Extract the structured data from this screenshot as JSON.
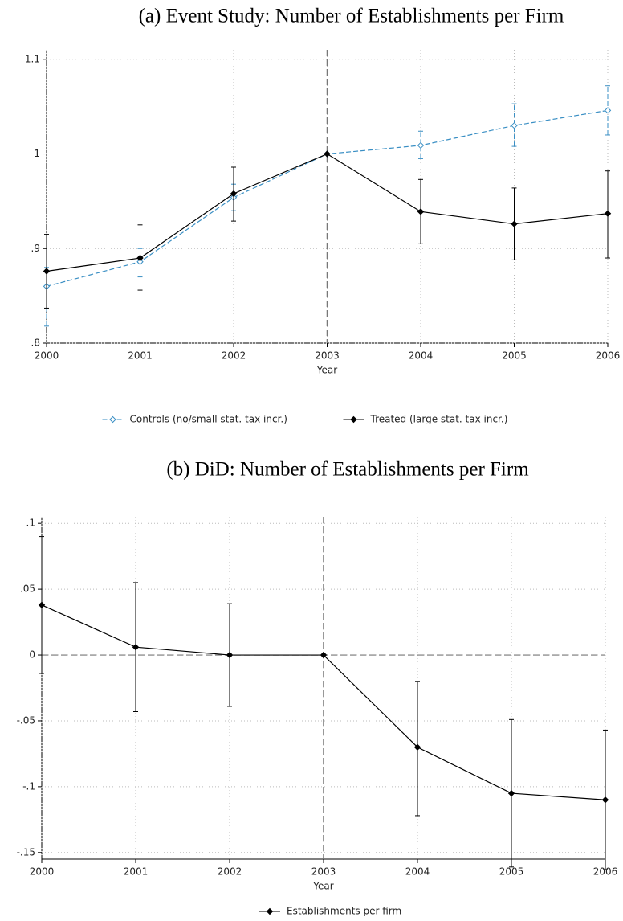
{
  "chart_data": [
    {
      "type": "line",
      "title": "(a) Event Study: Number of Establishments per Firm",
      "x_label": "Year",
      "x": [
        2000,
        2001,
        2002,
        2003,
        2004,
        2005,
        2006
      ],
      "xlim": [
        2000,
        2006
      ],
      "xticks": [
        2000,
        2001,
        2002,
        2003,
        2004,
        2005,
        2006
      ],
      "ylim": [
        0.8,
        1.11
      ],
      "yticks": [
        {
          "value": 0.8,
          "label": ".8"
        },
        {
          "value": 0.9,
          "label": ".9"
        },
        1,
        1.1
      ],
      "grid": true,
      "vline": 2003,
      "series": [
        {
          "name": "Controls (no/small stat. tax incr.)",
          "color": "#3a8fc4",
          "marker": "hollow",
          "dashed": true,
          "values": [
            0.86,
            0.886,
            0.954,
            1,
            1.009,
            1.03,
            1.046
          ],
          "lower": [
            0.818,
            0.87,
            0.94,
            null,
            0.995,
            1.008,
            1.02
          ],
          "upper": [
            0.88,
            0.9,
            0.968,
            null,
            1.024,
            1.053,
            1.072
          ]
        },
        {
          "name": "Treated (large stat. tax incr.)",
          "color": "#000000",
          "marker": "filled",
          "dashed": false,
          "values": [
            0.876,
            0.89,
            0.958,
            1,
            0.939,
            0.926,
            0.937
          ],
          "lower": [
            0.837,
            0.856,
            0.929,
            null,
            0.905,
            0.888,
            0.89
          ],
          "upper": [
            0.915,
            0.925,
            0.986,
            null,
            0.973,
            0.964,
            0.982
          ]
        }
      ]
    },
    {
      "type": "line",
      "title": "(b) DiD: Number of Establishments per Firm",
      "x_label": "Year",
      "x": [
        2000,
        2001,
        2002,
        2003,
        2004,
        2005,
        2006
      ],
      "xlim": [
        2000,
        2006
      ],
      "xticks": [
        2000,
        2001,
        2002,
        2003,
        2004,
        2005,
        2006
      ],
      "ylim": [
        -0.155,
        0.105
      ],
      "yticks": [
        {
          "value": 0.1,
          "label": ".1"
        },
        {
          "value": 0.05,
          "label": ".05"
        },
        0,
        {
          "value": -0.05,
          "label": "-.05"
        },
        {
          "value": -0.1,
          "label": "-.1"
        },
        {
          "value": -0.15,
          "label": "-.15"
        }
      ],
      "grid": true,
      "vline": 2003,
      "hline": 0,
      "series": [
        {
          "name": "Establishments per firm",
          "color": "#000000",
          "marker": "filled",
          "dashed": false,
          "values": [
            0.038,
            0.006,
            0,
            0,
            -0.07,
            -0.105,
            -0.11
          ],
          "lower": [
            -0.014,
            -0.043,
            -0.039,
            null,
            -0.122,
            -0.161,
            -0.163
          ],
          "upper": [
            0.09,
            0.055,
            0.039,
            null,
            -0.02,
            -0.049,
            -0.057
          ]
        }
      ]
    }
  ]
}
